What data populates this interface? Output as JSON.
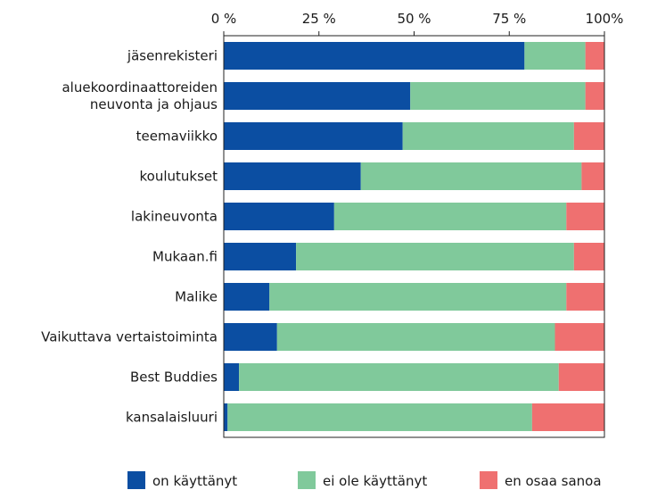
{
  "chart_data": {
    "type": "stacked_barh",
    "categories": [
      "jäsenrekisteri",
      "aluekoordinaattoreiden\nneuvonta ja ohjaus",
      "teemaviikko",
      "koulutukset",
      "lakineuvonta",
      "Mukaan.fi",
      "Malike",
      "Vaikuttava vertaistoiminta",
      "Best Buddies",
      "kansalaisluuri"
    ],
    "series": [
      {
        "name": "on käyttänyt",
        "color": "#0b4ea2",
        "values": [
          79,
          49,
          47,
          36,
          29,
          19,
          12,
          14,
          4,
          1
        ]
      },
      {
        "name": "ei ole käyttänyt",
        "color": "#80c99b",
        "values": [
          16,
          46,
          45,
          58,
          61,
          73,
          78,
          73,
          84,
          80
        ]
      },
      {
        "name": "en osaa sanoa",
        "color": "#ef7070",
        "values": [
          5,
          5,
          8,
          6,
          10,
          8,
          10,
          13,
          12,
          19
        ]
      }
    ],
    "xlim": [
      0,
      100
    ],
    "xticks": [
      {
        "value": 0,
        "label": "0 %"
      },
      {
        "value": 25,
        "label": "25 %"
      },
      {
        "value": 50,
        "label": "50 %"
      },
      {
        "value": 75,
        "label": "75 %"
      },
      {
        "value": 100,
        "label": "100%"
      }
    ],
    "legend": "bottom"
  }
}
